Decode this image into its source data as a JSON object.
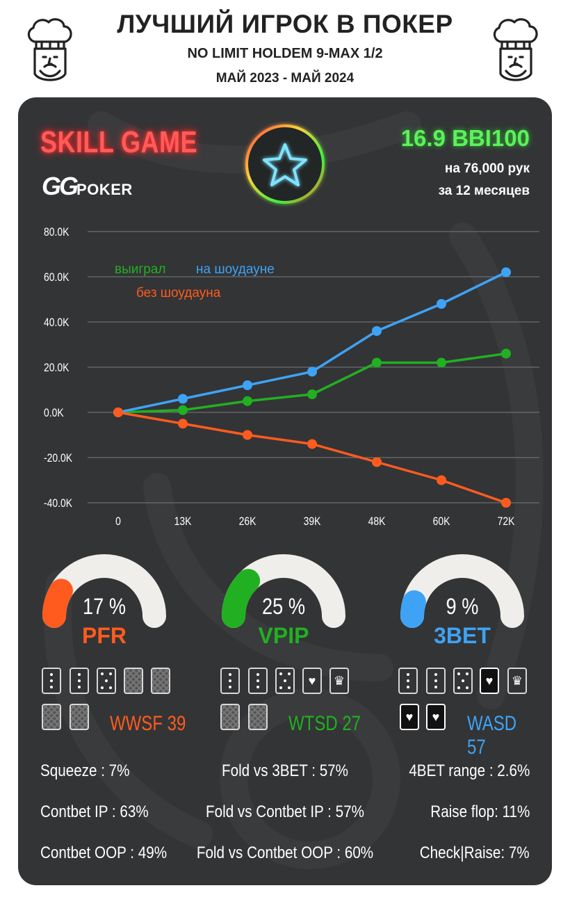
{
  "header": {
    "title": "ЛУЧШИЙ ИГРОК В ПОКЕР",
    "subtitle": "NO LIMIT HOLDEM 9-MAX 1/2",
    "period": "МАЙ 2023 - МАЙ 2024"
  },
  "badge": {
    "skill": "SKILL GAME",
    "brand_gg": "GG",
    "brand_poker": "POKER"
  },
  "summary": {
    "winrate": "16.9 BBI100",
    "hands": "на 76,000 рук",
    "months": "за  12 месяцев"
  },
  "colors": {
    "green": "#21b021",
    "blue": "#3ea3f5",
    "orange": "#ff5b1f",
    "card_bg": "#333436"
  },
  "chart_data": {
    "type": "line",
    "x": [
      "0",
      "13K",
      "26K",
      "39K",
      "48K",
      "60K",
      "72K"
    ],
    "y_ticks": [
      "80.0K",
      "60.0K",
      "40.0K",
      "20.0K",
      "0.0K",
      "-20.0K",
      "-40.0K"
    ],
    "ylim": [
      -40000,
      80000
    ],
    "grid": true,
    "legend_position": "top-left",
    "series": [
      {
        "name": "выиграл",
        "color": "#21b021",
        "values": [
          0,
          1000,
          5000,
          8000,
          22000,
          22000,
          26000
        ]
      },
      {
        "name": "на шоудауне",
        "color": "#3ea3f5",
        "values": [
          0,
          6000,
          12000,
          18000,
          36000,
          48000,
          62000
        ]
      },
      {
        "name": "без шоудауна",
        "color": "#ff5b1f",
        "values": [
          0,
          -5000,
          -10000,
          -14000,
          -22000,
          -30000,
          -40000
        ]
      }
    ]
  },
  "gauges": [
    {
      "percent_text": "17 %",
      "value": 17,
      "label": "PFR",
      "color": "#ff5b1f"
    },
    {
      "percent_text": "25 %",
      "value": 25,
      "label": "VPIP",
      "color": "#21b021"
    },
    {
      "percent_text": "9 %",
      "value": 9,
      "label": "3BET",
      "color": "#3ea3f5"
    }
  ],
  "card_stats": [
    {
      "label": "WWSF 39",
      "color": "#ff5b1f"
    },
    {
      "label": "WTSD 27",
      "color": "#21b021"
    },
    {
      "label": "WASD 57",
      "color": "#3ea3f5"
    }
  ],
  "stats": {
    "left": [
      "Squeeze : 7%",
      "Contbet IP : 63%",
      "Contbet OOP : 49%"
    ],
    "center": [
      "Fold vs 3BET : 57%",
      "Fold vs Contbet IP : 57%",
      "Fold vs Contbet OOP : 60%"
    ],
    "right": [
      "4BET range : 2.6%",
      "Raise flop: 11%",
      "Check|Raise: 7%"
    ]
  }
}
